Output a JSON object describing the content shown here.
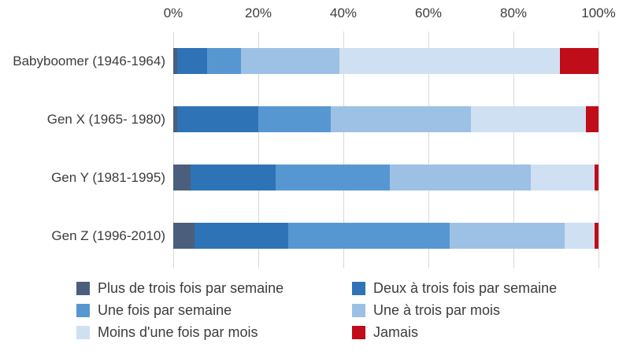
{
  "chart_data": {
    "type": "bar",
    "stacked": true,
    "orientation": "horizontal",
    "unit": "%",
    "title": "",
    "categories": [
      "Babyboomer (1946-1964)",
      "Gen X (1965- 1980)",
      "Gen Y (1981-1995)",
      "Gen Z (1996-2010)"
    ],
    "series": [
      {
        "name": "Plus de trois fois par semaine",
        "color": "#4b5e7c",
        "values": [
          1,
          1,
          4,
          5
        ]
      },
      {
        "name": "Deux à trois fois par semaine",
        "color": "#2e73b6",
        "values": [
          7,
          19,
          20,
          22
        ]
      },
      {
        "name": "Une fois par semaine",
        "color": "#5797d1",
        "values": [
          8,
          17,
          27,
          38
        ]
      },
      {
        "name": "Une à trois par mois",
        "color": "#9dc1e4",
        "values": [
          23,
          33,
          33,
          27
        ]
      },
      {
        "name": "Moins d'une fois par mois",
        "color": "#cfe0f2",
        "values": [
          52,
          27,
          15,
          7
        ]
      },
      {
        "name": "Jamais",
        "color": "#c00d19",
        "values": [
          9,
          3,
          1,
          1
        ]
      }
    ],
    "x_axis": {
      "position": "top",
      "min": 0,
      "max": 100,
      "ticks": [
        "0%",
        "20%",
        "40%",
        "60%",
        "80%",
        "100%"
      ]
    },
    "grid": "vertical",
    "legend_position": "bottom",
    "legend_columns": 2
  },
  "colors": {
    "background": "#ffffff",
    "gridline": "#d9d9d9",
    "text": "#3c3c3c"
  }
}
